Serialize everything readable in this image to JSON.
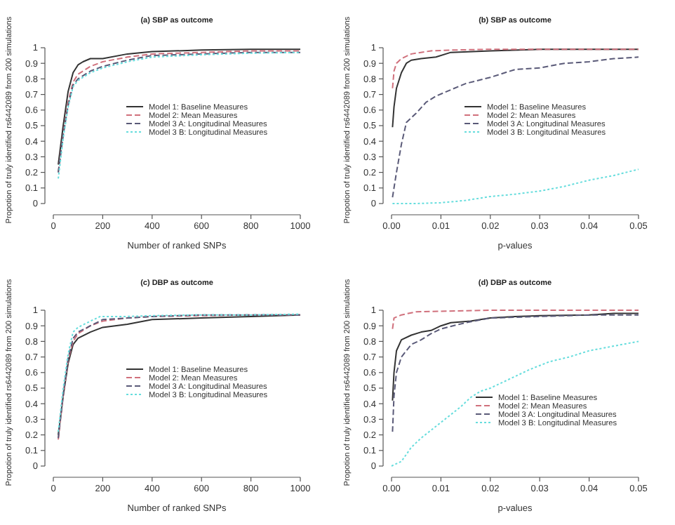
{
  "chart_data": [
    {
      "type": "line",
      "title": "(a) SBP as outcome",
      "xlabel": "Number of ranked SNPs",
      "ylabel": "Propotion of truly identified rs6442089 from 200 simulations",
      "xlim": [
        0,
        1000
      ],
      "xticks": [
        0,
        200,
        400,
        600,
        800,
        1000
      ],
      "ylim": [
        0,
        1
      ],
      "yticks": [
        0,
        0.1,
        0.2,
        0.3,
        0.4,
        0.5,
        0.6,
        0.7,
        0.8,
        0.9,
        1
      ],
      "legend": "right",
      "grid": false,
      "series": [
        {
          "name": "Model 1: Baseline Measures",
          "color": "#333333",
          "line_style": "solid",
          "x": [
            20,
            40,
            60,
            80,
            100,
            120,
            150,
            200,
            300,
            400,
            600,
            800,
            1000
          ],
          "values": [
            0.25,
            0.5,
            0.72,
            0.84,
            0.89,
            0.91,
            0.93,
            0.93,
            0.96,
            0.975,
            0.985,
            0.99,
            0.99
          ]
        },
        {
          "name": "Model 2: Mean Measures",
          "color": "#d0707c",
          "line_style": "dashed",
          "x": [
            20,
            40,
            60,
            80,
            100,
            150,
            200,
            300,
            400,
            600,
            800,
            1000
          ],
          "values": [
            0.2,
            0.45,
            0.65,
            0.78,
            0.83,
            0.88,
            0.91,
            0.94,
            0.96,
            0.97,
            0.98,
            0.98
          ]
        },
        {
          "name": "Model 3 A: Longitudinal Measures",
          "color": "#5a5a78",
          "line_style": "dashed",
          "x": [
            20,
            40,
            60,
            80,
            100,
            150,
            200,
            300,
            400,
            600,
            800,
            1000
          ],
          "values": [
            0.2,
            0.44,
            0.63,
            0.76,
            0.8,
            0.85,
            0.88,
            0.92,
            0.95,
            0.96,
            0.97,
            0.97
          ]
        },
        {
          "name": "Model 3 B: Longitudinal Measures",
          "color": "#66dddd",
          "line_style": "dotted",
          "x": [
            20,
            40,
            60,
            80,
            100,
            150,
            200,
            300,
            400,
            600,
            800,
            1000
          ],
          "values": [
            0.16,
            0.42,
            0.62,
            0.75,
            0.79,
            0.84,
            0.87,
            0.91,
            0.94,
            0.955,
            0.965,
            0.97
          ]
        }
      ]
    },
    {
      "type": "line",
      "title": "(b) SBP as outcome",
      "xlabel": "p-values",
      "ylabel": "Propotion of truly identified rs6442089 from 200 simulations",
      "xlim": [
        0,
        0.05
      ],
      "xticks": [
        {
          "value": 0,
          "label": "0.00"
        },
        {
          "value": 0.01,
          "label": "0.01"
        },
        {
          "value": 0.02,
          "label": "0.02"
        },
        {
          "value": 0.03,
          "label": "0.03"
        },
        {
          "value": 0.04,
          "label": "0.04"
        },
        {
          "value": 0.05,
          "label": "0.05"
        }
      ],
      "ylim": [
        0,
        1
      ],
      "yticks": [
        0,
        0.1,
        0.2,
        0.3,
        0.4,
        0.5,
        0.6,
        0.7,
        0.8,
        0.9,
        1
      ],
      "legend": "right",
      "grid": false,
      "series": [
        {
          "name": "Model 1: Baseline Measures",
          "color": "#333333",
          "line_style": "solid",
          "x": [
            0.0002,
            0.0005,
            0.001,
            0.002,
            0.003,
            0.004,
            0.006,
            0.009,
            0.012,
            0.02,
            0.03,
            0.05
          ],
          "values": [
            0.49,
            0.62,
            0.74,
            0.84,
            0.9,
            0.92,
            0.93,
            0.94,
            0.97,
            0.98,
            0.99,
            0.99
          ]
        },
        {
          "name": "Model 2: Mean Measures",
          "color": "#d0707c",
          "line_style": "dashed",
          "x": [
            0.0002,
            0.0005,
            0.001,
            0.002,
            0.004,
            0.008,
            0.012,
            0.02,
            0.05
          ],
          "values": [
            0.74,
            0.85,
            0.9,
            0.93,
            0.96,
            0.98,
            0.985,
            0.99,
            0.99
          ]
        },
        {
          "name": "Model 3 A: Longitudinal Measures",
          "color": "#5a5a78",
          "line_style": "dashed",
          "x": [
            0.0002,
            0.001,
            0.002,
            0.003,
            0.005,
            0.007,
            0.009,
            0.012,
            0.015,
            0.02,
            0.025,
            0.03,
            0.035,
            0.04,
            0.045,
            0.05
          ],
          "values": [
            0.04,
            0.2,
            0.38,
            0.52,
            0.58,
            0.65,
            0.69,
            0.73,
            0.77,
            0.81,
            0.86,
            0.87,
            0.9,
            0.91,
            0.93,
            0.94
          ]
        },
        {
          "name": "Model 3 B: Longitudinal Measures",
          "color": "#66dddd",
          "line_style": "dotted",
          "x": [
            0.0002,
            0.005,
            0.01,
            0.015,
            0.02,
            0.025,
            0.03,
            0.035,
            0.04,
            0.045,
            0.05
          ],
          "values": [
            0,
            0,
            0.005,
            0.02,
            0.045,
            0.06,
            0.08,
            0.11,
            0.15,
            0.18,
            0.22
          ]
        }
      ]
    },
    {
      "type": "line",
      "title": "(c) DBP as outcome",
      "xlabel": "Number of ranked SNPs",
      "ylabel": "Propotion of truly identified rs6442089 from 200 simulations",
      "xlim": [
        0,
        1000
      ],
      "xticks": [
        0,
        200,
        400,
        600,
        800,
        1000
      ],
      "ylim": [
        0,
        1
      ],
      "yticks": [
        0,
        0.1,
        0.2,
        0.3,
        0.4,
        0.5,
        0.6,
        0.7,
        0.8,
        0.9,
        1
      ],
      "legend": "right",
      "grid": false,
      "series": [
        {
          "name": "Model 1: Baseline Measures",
          "color": "#333333",
          "line_style": "solid",
          "x": [
            20,
            40,
            60,
            80,
            100,
            150,
            200,
            250,
            300,
            400,
            600,
            800,
            1000
          ],
          "values": [
            0.2,
            0.45,
            0.66,
            0.78,
            0.82,
            0.86,
            0.89,
            0.9,
            0.91,
            0.94,
            0.95,
            0.96,
            0.97
          ]
        },
        {
          "name": "Model 2: Mean Measures",
          "color": "#d0707c",
          "line_style": "dashed",
          "x": [
            20,
            40,
            60,
            80,
            100,
            150,
            200,
            300,
            400,
            600,
            800,
            1000
          ],
          "values": [
            0.17,
            0.45,
            0.68,
            0.8,
            0.85,
            0.9,
            0.93,
            0.95,
            0.96,
            0.965,
            0.97,
            0.97
          ]
        },
        {
          "name": "Model 3 A: Longitudinal Measures",
          "color": "#5a5a78",
          "line_style": "dashed",
          "x": [
            20,
            40,
            60,
            80,
            100,
            150,
            200,
            300,
            400,
            600,
            800,
            1000
          ],
          "values": [
            0.18,
            0.46,
            0.69,
            0.82,
            0.86,
            0.9,
            0.94,
            0.95,
            0.96,
            0.97,
            0.97,
            0.97
          ]
        },
        {
          "name": "Model 3 B: Longitudinal Measures",
          "color": "#66dddd",
          "line_style": "dotted",
          "x": [
            20,
            40,
            60,
            80,
            100,
            150,
            190,
            300,
            400,
            600,
            800,
            1000
          ],
          "values": [
            0.22,
            0.5,
            0.72,
            0.86,
            0.89,
            0.93,
            0.96,
            0.96,
            0.965,
            0.97,
            0.97,
            0.975
          ]
        }
      ]
    },
    {
      "type": "line",
      "title": "(d) DBP as outcome",
      "xlabel": "p-values",
      "ylabel": "Propotion of truly identified rs6442089 from 200 simulations",
      "xlim": [
        0,
        0.05
      ],
      "xticks": [
        {
          "value": 0,
          "label": "0.00"
        },
        {
          "value": 0.01,
          "label": "0.01"
        },
        {
          "value": 0.02,
          "label": "0.02"
        },
        {
          "value": 0.03,
          "label": "0.03"
        },
        {
          "value": 0.04,
          "label": "0.04"
        },
        {
          "value": 0.05,
          "label": "0.05"
        }
      ],
      "ylim": [
        0,
        1
      ],
      "yticks": [
        0,
        0.1,
        0.2,
        0.3,
        0.4,
        0.5,
        0.6,
        0.7,
        0.8,
        0.9,
        1
      ],
      "legend": "bottom right",
      "grid": false,
      "series": [
        {
          "name": "Model 1: Baseline Measures",
          "color": "#333333",
          "line_style": "solid",
          "x": [
            0.0002,
            0.0005,
            0.001,
            0.002,
            0.004,
            0.006,
            0.008,
            0.01,
            0.012,
            0.016,
            0.02,
            0.025,
            0.03,
            0.04,
            0.045,
            0.05
          ],
          "values": [
            0.42,
            0.6,
            0.74,
            0.81,
            0.84,
            0.86,
            0.87,
            0.9,
            0.92,
            0.93,
            0.95,
            0.96,
            0.965,
            0.97,
            0.98,
            0.98
          ]
        },
        {
          "name": "Model 2: Mean Measures",
          "color": "#d0707c",
          "line_style": "dashed",
          "x": [
            0.0002,
            0.0005,
            0.002,
            0.005,
            0.02,
            0.05
          ],
          "values": [
            0.88,
            0.95,
            0.97,
            0.99,
            1,
            1
          ]
        },
        {
          "name": "Model 3 A: Longitudinal Measures",
          "color": "#5a5a78",
          "line_style": "dashed",
          "x": [
            0.0002,
            0.0005,
            0.001,
            0.002,
            0.004,
            0.006,
            0.008,
            0.01,
            0.015,
            0.02,
            0.03,
            0.04,
            0.05
          ],
          "values": [
            0.22,
            0.45,
            0.6,
            0.7,
            0.78,
            0.81,
            0.85,
            0.88,
            0.92,
            0.95,
            0.96,
            0.97,
            0.97
          ]
        },
        {
          "name": "Model 3 B: Longitudinal Measures",
          "color": "#66dddd",
          "line_style": "dotted",
          "x": [
            0,
            0.002,
            0.004,
            0.006,
            0.008,
            0.01,
            0.012,
            0.014,
            0.016,
            0.018,
            0.02,
            0.024,
            0.028,
            0.032,
            0.036,
            0.04,
            0.045,
            0.05
          ],
          "values": [
            0,
            0.03,
            0.12,
            0.18,
            0.23,
            0.28,
            0.33,
            0.38,
            0.44,
            0.48,
            0.5,
            0.56,
            0.62,
            0.67,
            0.7,
            0.74,
            0.77,
            0.8
          ]
        }
      ]
    }
  ]
}
